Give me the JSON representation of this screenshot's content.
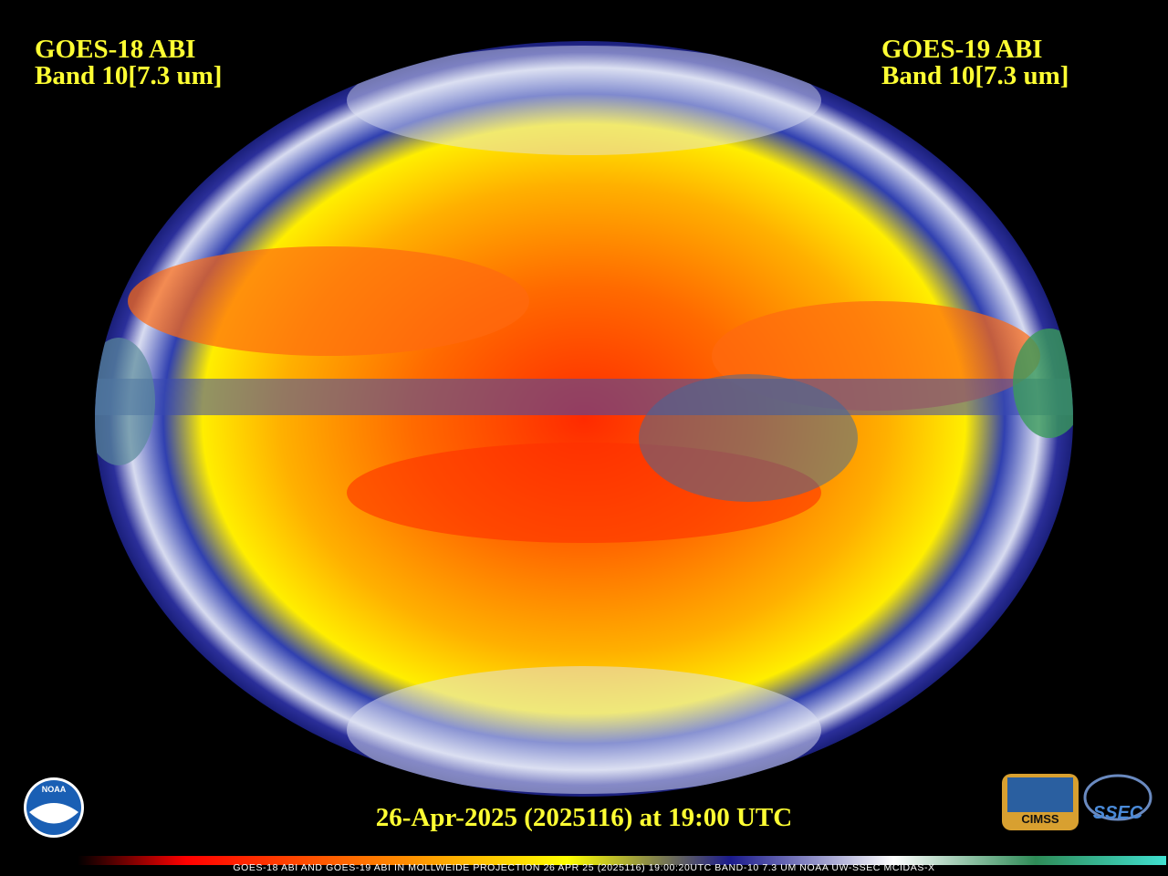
{
  "header": {
    "left": {
      "title": "GOES-18 ABI",
      "subtitle": "Band 10[7.3 um]"
    },
    "right": {
      "title": "GOES-19 ABI",
      "subtitle": "Band 10[7.3 um]"
    }
  },
  "timestamp": "26-Apr-2025 (2025116) at 19:00 UTC",
  "footer_caption": "GOES-18 ABI AND GOES-19 ABI IN MOLLWEIDE PROJECTION 26 APR 25 (2025116) 19:00:20UTC BAND-10 7.3 UM NOAA UW-SSEC MCIDAS-X",
  "logos": {
    "noaa": "NOAA",
    "cimss": "CIMSS",
    "ssec": "SSEC"
  }
}
